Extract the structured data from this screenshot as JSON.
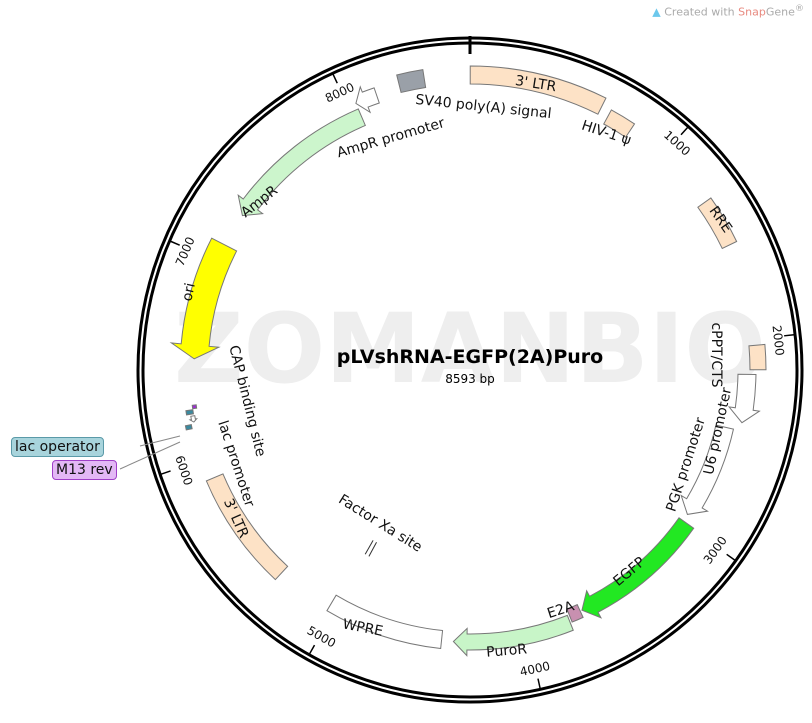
{
  "brand": {
    "prefix": "Created with ",
    "name_part1": "Snap",
    "name_part2": "Gene",
    "mark": "®",
    "icon": "snapgene-logo-icon"
  },
  "watermark": "ZOMANBIO",
  "plasmid": {
    "name": "pLVshRNA-EGFP(2A)Puro",
    "length_label": "8593 bp",
    "length": 8593
  },
  "ticks": [
    1000,
    2000,
    3000,
    4000,
    5000,
    6000,
    7000,
    8000
  ],
  "features": [
    {
      "name": "3' LTR",
      "start": 1,
      "end": 634,
      "dir": 0,
      "color": "#fde2c6"
    },
    {
      "name": "HIV-1 ψ",
      "start": 681,
      "end": 806,
      "dir": 0,
      "color": "#fde2c6"
    },
    {
      "name": "RRE",
      "start": 1300,
      "end": 1534,
      "dir": 0,
      "color": "#fde2c6"
    },
    {
      "name": "cPPT/CTS",
      "start": 2030,
      "end": 2147,
      "dir": 0,
      "color": "#fde2c6"
    },
    {
      "name": "U6 promoter",
      "start": 2170,
      "end": 2410,
      "dir": 1,
      "color": "#ffffff"
    },
    {
      "name": "PGK promoter",
      "start": 2450,
      "end": 2950,
      "dir": 1,
      "color": "#ffffff"
    },
    {
      "name": "EGFP",
      "start": 2990,
      "end": 3700,
      "dir": 1,
      "color": "#22e822"
    },
    {
      "name": "E2A",
      "start": 3710,
      "end": 3770,
      "dir": 0,
      "color": "#c890b0"
    },
    {
      "name": "PuroR",
      "start": 3780,
      "end": 4380,
      "dir": 1,
      "color": "#c8f5c8"
    },
    {
      "name": "WPRE",
      "start": 4440,
      "end": 5030,
      "dir": 0,
      "color": "#ffffff"
    },
    {
      "name": "Factor Xa site",
      "start": 4990,
      "end": 5002,
      "dir": 0,
      "color": "#ffffff"
    },
    {
      "name": "3' LTR",
      "start": 5320,
      "end": 5900,
      "dir": 0,
      "color": "#fde2c6"
    },
    {
      "name": "lac promoter",
      "start": 6190,
      "end": 6220,
      "dir": -1,
      "color": "#ffffff"
    },
    {
      "name": "lac operator",
      "start": 6230,
      "end": 6250,
      "dir": 0,
      "color": "#3a8aa0"
    },
    {
      "name": "M13 rev",
      "start": 6255,
      "end": 6272,
      "dir": 0,
      "color": "#9b30d0"
    },
    {
      "name": "CAP binding site",
      "start": 6160,
      "end": 6180,
      "dir": 0,
      "color": "#3a8aa0"
    },
    {
      "name": "ori",
      "start": 6500,
      "end": 7090,
      "dir": -1,
      "color": "#ffff00"
    },
    {
      "name": "AmpR",
      "start": 7260,
      "end": 8040,
      "dir": -1,
      "color": "#ccf5cc"
    },
    {
      "name": "AmpR promoter",
      "start": 8040,
      "end": 8145,
      "dir": -1,
      "color": "#ffffff"
    },
    {
      "name": "SV40 poly(A) signal",
      "start": 8260,
      "end": 8380,
      "dir": 0,
      "color": "#9aa0a8"
    }
  ],
  "callouts": {
    "lac_operator": {
      "label": "lac operator",
      "color": "#a8d4dc"
    },
    "m13_rev": {
      "label": "M13 rev",
      "color": "#e3b8f5"
    }
  }
}
